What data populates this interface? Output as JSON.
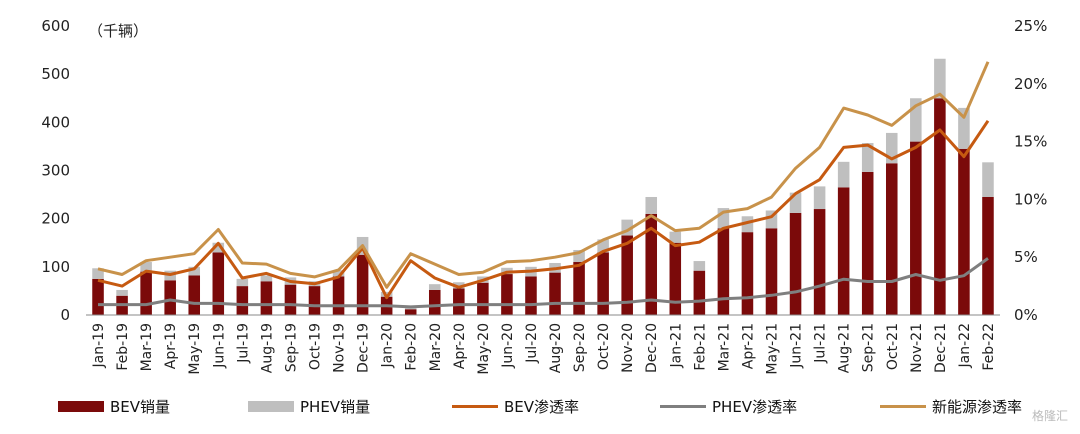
{
  "chart_data": {
    "type": "bar",
    "unit_label": "（千辆）",
    "categories": [
      "Jan-19",
      "Feb-19",
      "Mar-19",
      "Apr-19",
      "May-19",
      "Jun-19",
      "Jul-19",
      "Aug-19",
      "Sep-19",
      "Oct-19",
      "Nov-19",
      "Dec-19",
      "Jan-20",
      "Feb-20",
      "Mar-20",
      "Apr-20",
      "May-20",
      "Jun-20",
      "Jul-20",
      "Aug-20",
      "Sep-20",
      "Oct-20",
      "Nov-20",
      "Dec-20",
      "Jan-21",
      "Feb-21",
      "Mar-21",
      "Apr-21",
      "May-21",
      "Jun-21",
      "Jul-21",
      "Aug-21",
      "Sep-21",
      "Oct-21",
      "Nov-21",
      "Dec-21",
      "Jan-22",
      "Feb-22"
    ],
    "y_left": {
      "ticks": [
        "0",
        "100",
        "200",
        "300",
        "400",
        "500",
        "600"
      ],
      "ylim": [
        0,
        600
      ]
    },
    "y_right": {
      "ticks": [
        "0%",
        "5%",
        "10%",
        "15%",
        "20%",
        "25%"
      ],
      "ylim": [
        0,
        25
      ]
    },
    "stacked": true,
    "series": [
      {
        "name": "BEV销量",
        "kind": "bar",
        "axis": "left",
        "color": "#7B0A0A",
        "values": [
          75,
          40,
          90,
          72,
          82,
          130,
          60,
          70,
          63,
          60,
          80,
          125,
          38,
          12,
          52,
          55,
          67,
          85,
          80,
          88,
          110,
          130,
          165,
          210,
          150,
          92,
          180,
          172,
          180,
          212,
          220,
          265,
          297,
          315,
          360,
          450,
          345,
          245
        ]
      },
      {
        "name": "PHEV销量",
        "kind": "bar",
        "axis": "left",
        "color": "#BFBFBF",
        "values": [
          22,
          12,
          20,
          20,
          18,
          20,
          15,
          12,
          15,
          10,
          13,
          37,
          10,
          6,
          12,
          13,
          13,
          13,
          20,
          20,
          25,
          27,
          33,
          35,
          23,
          20,
          42,
          33,
          37,
          42,
          47,
          53,
          60,
          63,
          90,
          82,
          85,
          72
        ]
      },
      {
        "name": "BEV渗透率",
        "kind": "line",
        "axis": "right",
        "color": "#C65A11",
        "values": [
          3.0,
          2.5,
          3.8,
          3.5,
          4.0,
          6.2,
          3.2,
          3.6,
          2.9,
          2.7,
          3.3,
          5.8,
          1.5,
          4.7,
          3.2,
          2.4,
          3.0,
          3.7,
          3.8,
          4.0,
          4.3,
          5.5,
          6.2,
          7.5,
          6.0,
          6.3,
          7.5,
          8.0,
          8.5,
          10.5,
          11.7,
          14.5,
          14.7,
          13.5,
          14.5,
          16.0,
          13.7,
          16.8
        ]
      },
      {
        "name": "PHEV渗透率",
        "kind": "line",
        "axis": "right",
        "color": "#7F7F7F",
        "values": [
          0.9,
          0.9,
          0.9,
          1.3,
          1.0,
          1.0,
          0.9,
          0.9,
          0.9,
          0.8,
          0.8,
          0.8,
          0.8,
          0.7,
          0.8,
          0.9,
          0.9,
          0.9,
          0.9,
          1.0,
          1.0,
          1.0,
          1.1,
          1.3,
          1.1,
          1.2,
          1.4,
          1.5,
          1.7,
          2.0,
          2.5,
          3.1,
          2.9,
          2.9,
          3.5,
          3.0,
          3.4,
          4.9
        ]
      },
      {
        "name": "新能源渗透率",
        "kind": "line",
        "axis": "right",
        "color": "#C8924A",
        "values": [
          4.0,
          3.5,
          4.7,
          5.0,
          5.3,
          7.4,
          4.5,
          4.4,
          3.6,
          3.3,
          3.9,
          6.0,
          2.4,
          5.3,
          4.4,
          3.5,
          3.7,
          4.6,
          4.7,
          5.0,
          5.4,
          6.5,
          7.3,
          8.6,
          7.3,
          7.5,
          8.9,
          9.2,
          10.2,
          12.7,
          14.5,
          17.9,
          17.3,
          16.4,
          18.1,
          19.1,
          17.1,
          21.9
        ]
      }
    ]
  },
  "watermark": "格隆汇"
}
